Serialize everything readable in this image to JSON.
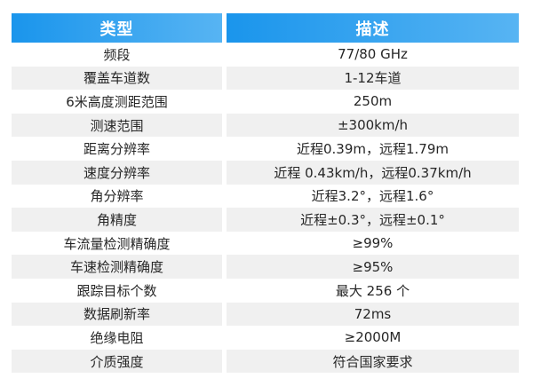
{
  "table": {
    "columns": [
      {
        "label": "类型"
      },
      {
        "label": "描述"
      }
    ],
    "rows": [
      {
        "type": "频段",
        "desc": "77/80 GHz"
      },
      {
        "type": "覆盖车道数",
        "desc": "1-12车道"
      },
      {
        "type": "6米高度测距范围",
        "desc": "250m"
      },
      {
        "type": "测速范围",
        "desc": "±300km/h"
      },
      {
        "type": "距离分辨率",
        "desc": "近程0.39m，远程1.79m"
      },
      {
        "type": "速度分辨率",
        "desc": "近程 0.43km/h，远程0.37km/h"
      },
      {
        "type": "角分辨率",
        "desc": "近程3.2°，远程1.6°"
      },
      {
        "type": "角精度",
        "desc": "近程±0.3°，远程±0.1°"
      },
      {
        "type": "车流量检测精确度",
        "desc": "≥99%"
      },
      {
        "type": "车速检测精确度",
        "desc": "≥95%"
      },
      {
        "type": "跟踪目标个数",
        "desc": "最大 256 个"
      },
      {
        "type": "数据刷新率",
        "desc": "72ms"
      },
      {
        "type": "绝缘电阻",
        "desc": "≥2000M"
      },
      {
        "type": "介质强度",
        "desc": "符合国家要求"
      }
    ]
  },
  "colors": {
    "header_gradient_start": "#1a95ec",
    "header_gradient_end": "#57b4f3",
    "header_text": "#ffffff",
    "row_alt_background": "#f0f0f0",
    "body_text": "#262626",
    "page_background": "#ffffff"
  }
}
